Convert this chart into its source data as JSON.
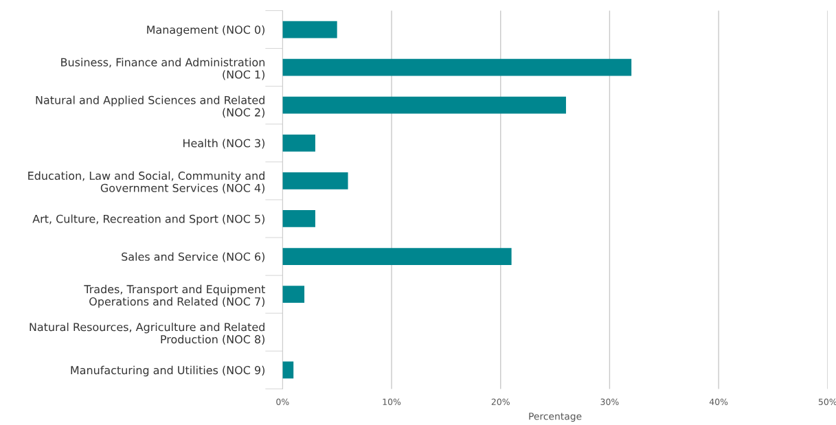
{
  "chart_data": {
    "type": "bar",
    "orientation": "horizontal",
    "xlabel": "Percentage",
    "categories": [
      "Management (NOC 0)",
      "Business, Finance and Administration\n(NOC 1)",
      "Natural and Applied Sciences and Related\n(NOC 2)",
      "Health (NOC 3)",
      "Education, Law and Social, Community and\nGovernment Services (NOC 4)",
      "Art, Culture, Recreation and Sport (NOC 5)",
      "Sales and Service (NOC 6)",
      "Trades, Transport and Equipment\nOperations and Related (NOC 7)",
      "Natural Resources, Agriculture and Related\nProduction (NOC 8)",
      "Manufacturing and Utilities (NOC 9)"
    ],
    "values": [
      5,
      32,
      26,
      3,
      6,
      3,
      21,
      2,
      0,
      1
    ],
    "color": "#00868f",
    "xlim": [
      0,
      50
    ],
    "xticks": [
      {
        "value": 0,
        "label": "0%"
      },
      {
        "value": 10,
        "label": "10%"
      },
      {
        "value": 20,
        "label": "20%"
      },
      {
        "value": 30,
        "label": "30%"
      },
      {
        "value": 40,
        "label": "40%"
      },
      {
        "value": 50,
        "label": "50%"
      }
    ],
    "grid": "x",
    "legend": false
  }
}
